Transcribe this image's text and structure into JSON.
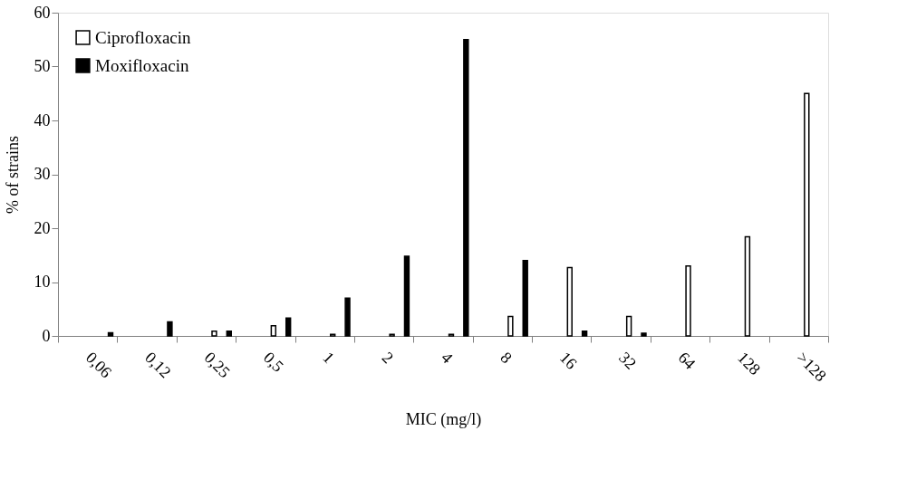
{
  "chart_data": {
    "type": "bar",
    "xlabel": "MIC (mg/l)",
    "ylabel": "% of strains",
    "categories": [
      "0,06",
      "0,12",
      "0,25",
      "0,5",
      "1",
      "2",
      "4",
      "8",
      "16",
      "32",
      "64",
      "128",
      ">128"
    ],
    "series": [
      {
        "name": "Ciprofloxacin",
        "color": "#ffffff",
        "values": [
          null,
          null,
          0.9,
          1.9,
          0.3,
          0.3,
          0.3,
          3.6,
          12.7,
          3.6,
          13,
          18.4,
          45
        ]
      },
      {
        "name": "Moxifloxacin",
        "color": "#000000",
        "values": [
          0.6,
          2.6,
          0.9,
          3.3,
          7,
          14.8,
          55,
          14,
          0.9,
          0.5,
          null,
          null,
          null
        ]
      }
    ],
    "ylim": [
      0,
      60
    ],
    "yticks": [
      0,
      10,
      20,
      30,
      40,
      50,
      60
    ],
    "grid": false,
    "legend": "top left"
  }
}
